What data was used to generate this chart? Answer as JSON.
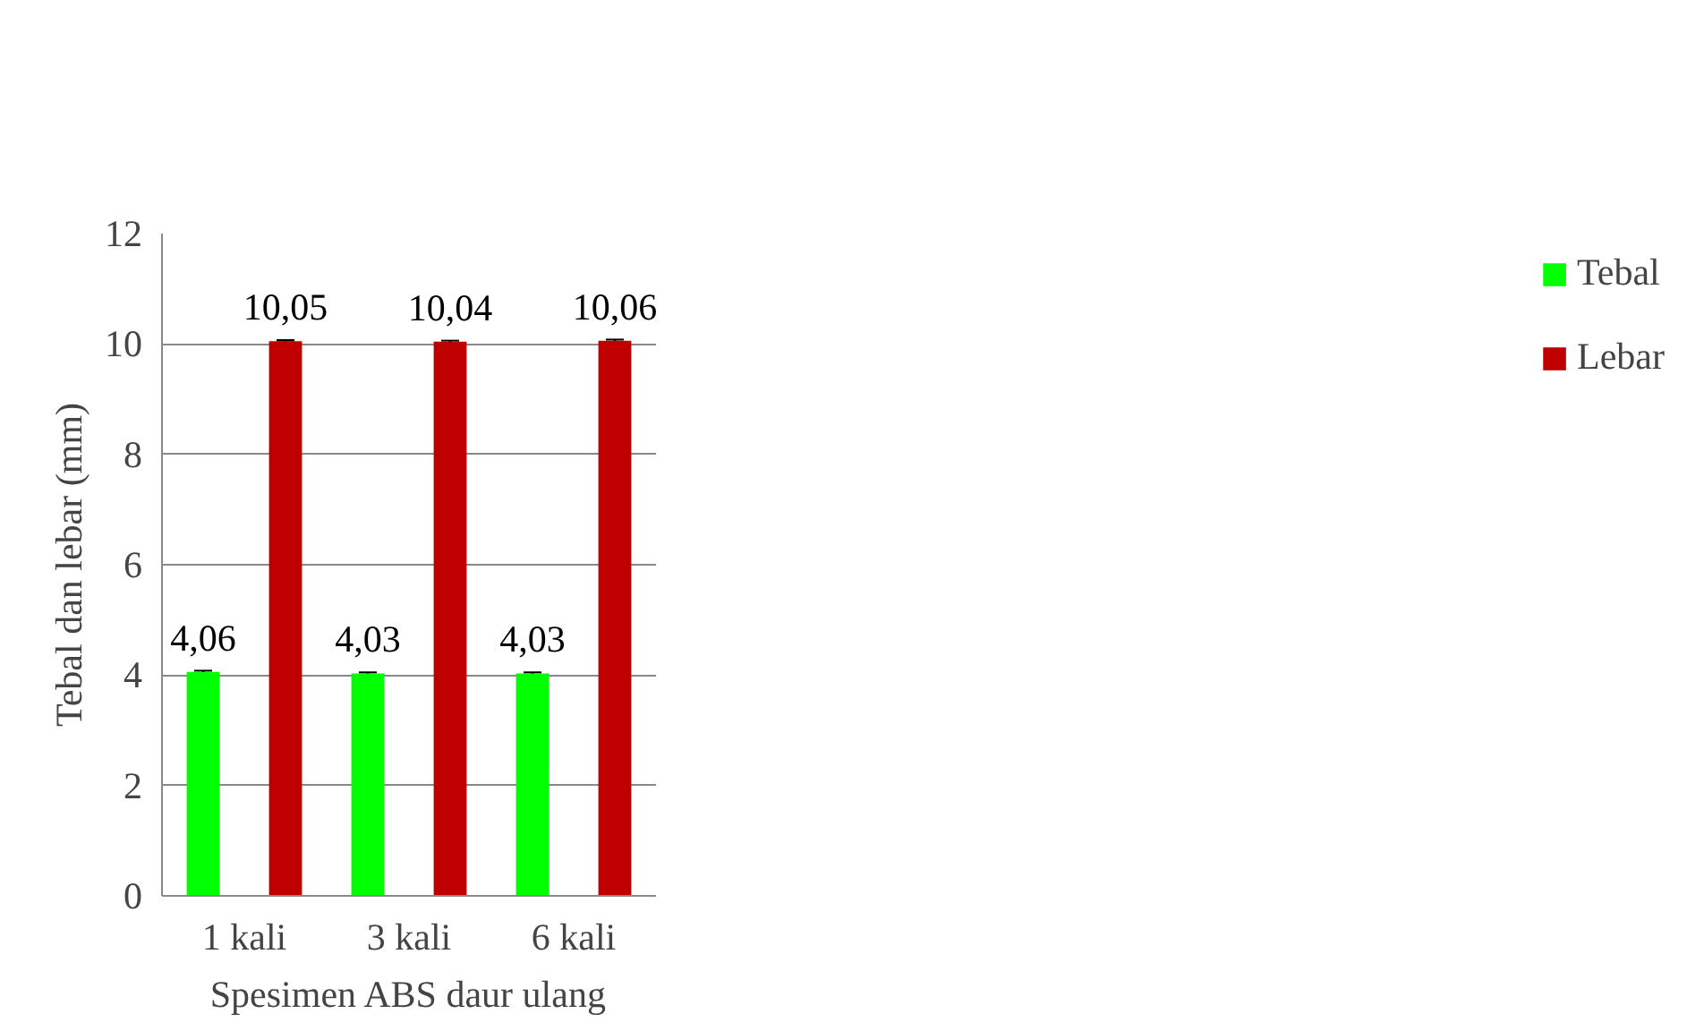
{
  "chart_data": {
    "type": "bar",
    "xlabel": "Spesimen ABS daur ulang",
    "ylabel": "Tebal dan lebar (mm)",
    "categories": [
      "1 kali",
      "3 kali",
      "6 kali"
    ],
    "series": [
      {
        "name": "Tebal",
        "color": "#00ff00",
        "values": [
          4.06,
          4.03,
          4.03
        ],
        "value_labels": [
          "4,06",
          "4,03",
          "4,03"
        ],
        "errors": [
          0.02,
          0.02,
          0.02
        ]
      },
      {
        "name": "Lebar",
        "color": "#c00000",
        "values": [
          10.05,
          10.04,
          10.06
        ],
        "value_labels": [
          "10,05",
          "10,04",
          "10,06"
        ],
        "errors": [
          0.02,
          0.02,
          0.02
        ]
      }
    ],
    "ylim": [
      0,
      12
    ],
    "yticks": [
      0,
      2,
      4,
      6,
      8,
      10,
      12
    ],
    "grid": "y",
    "legend": "right"
  }
}
